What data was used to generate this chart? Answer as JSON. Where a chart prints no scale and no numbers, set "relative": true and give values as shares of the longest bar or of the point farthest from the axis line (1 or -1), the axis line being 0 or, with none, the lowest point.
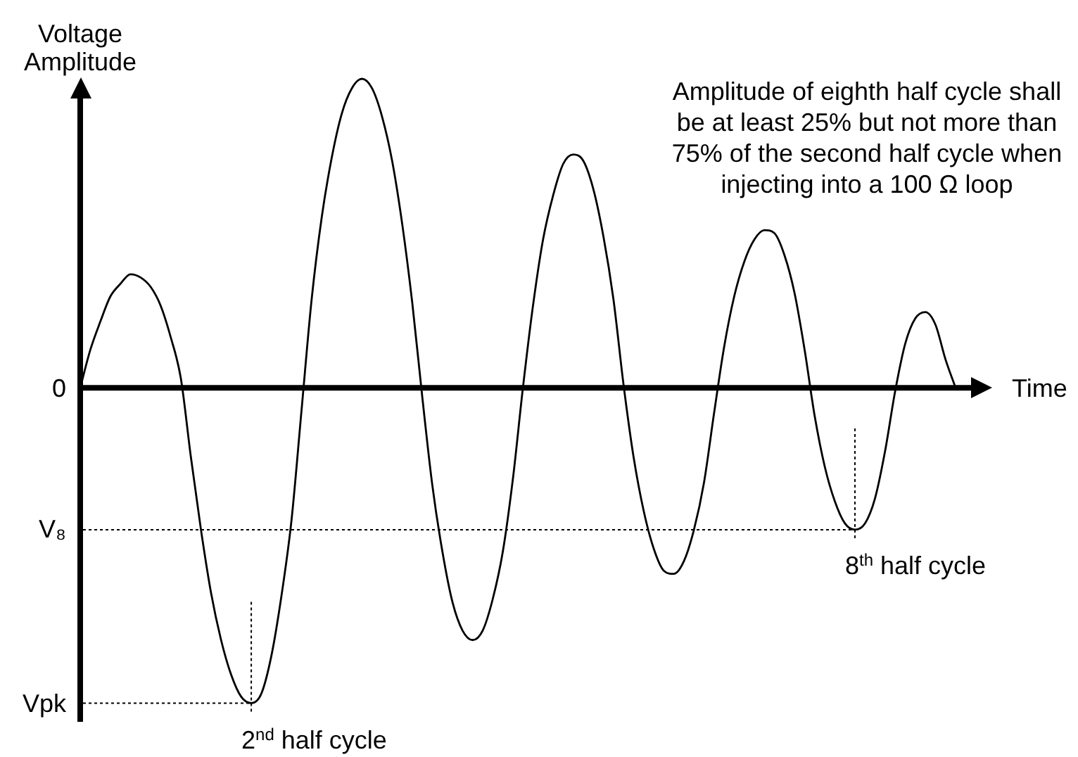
{
  "chart_data": {
    "type": "line",
    "xlabel": "Time",
    "ylabel": "Voltage Amplitude",
    "relative": true,
    "marker": "none",
    "categories": [
      null,
      null,
      null,
      null,
      null,
      null,
      null,
      null,
      null,
      null,
      null,
      null,
      null,
      null,
      null,
      null,
      null,
      null,
      null,
      null,
      null,
      null,
      null,
      null,
      null,
      null,
      null,
      null,
      null,
      null,
      null,
      null,
      null,
      null,
      null,
      null,
      null,
      null,
      null,
      null,
      null,
      null,
      null,
      null,
      null,
      null,
      null,
      null,
      null,
      null,
      null,
      null,
      null,
      null,
      null,
      null,
      null,
      null,
      null,
      null,
      null,
      null,
      null,
      null,
      null,
      null,
      null,
      null,
      null,
      null,
      null,
      null,
      null,
      null,
      null,
      null,
      null,
      null,
      null,
      null,
      null,
      null,
      null,
      null,
      null,
      null,
      null,
      null
    ],
    "series": [
      {
        "color": "#000000",
        "values": [
          0,
          0.12,
          0.21,
          0.29,
          0.33,
          0.36,
          0.35,
          0.32,
          0.26,
          0.16,
          0.03,
          -0.22,
          -0.45,
          -0.65,
          -0.8,
          -0.91,
          -0.98,
          -1,
          -0.97,
          -0.85,
          -0.66,
          -0.42,
          -0.07,
          0.28,
          0.54,
          0.73,
          0.87,
          0.95,
          0.98,
          0.95,
          0.86,
          0.72,
          0.52,
          0.27,
          -0.03,
          -0.31,
          -0.52,
          -0.68,
          -0.77,
          -0.8,
          -0.77,
          -0.67,
          -0.52,
          -0.29,
          0,
          0.26,
          0.47,
          0.61,
          0.71,
          0.74,
          0.72,
          0.63,
          0.48,
          0.28,
          0.01,
          -0.22,
          -0.39,
          -0.51,
          -0.58,
          -0.59,
          -0.55,
          -0.45,
          -0.3,
          -0.08,
          0.13,
          0.29,
          0.4,
          0.47,
          0.5,
          0.49,
          0.42,
          0.3,
          0.12,
          -0.09,
          -0.25,
          -0.36,
          -0.43,
          -0.45,
          -0.43,
          -0.35,
          -0.2,
          -0.01,
          0.14,
          0.22,
          0.24,
          0.2,
          0.09,
          0
        ]
      }
    ],
    "ref_lines": [
      {
        "axis": "y",
        "value": 0,
        "label": "0",
        "color": "#000000",
        "line_style": "solid"
      },
      {
        "axis": "y",
        "value": -0.45,
        "label": "V₈",
        "color": "#000000",
        "line_style": "dotted"
      },
      {
        "axis": "y",
        "value": -1,
        "label": "Vpk",
        "color": "#000000",
        "line_style": "dotted"
      }
    ],
    "annotations": [
      "Amplitude of eighth half cycle shall be at least 25% but not more than 75% of the second half cycle when injecting into a 100 Ω loop",
      "2$^{nd}$ half cycle",
      "8$^{th}$ half cycle"
    ]
  }
}
